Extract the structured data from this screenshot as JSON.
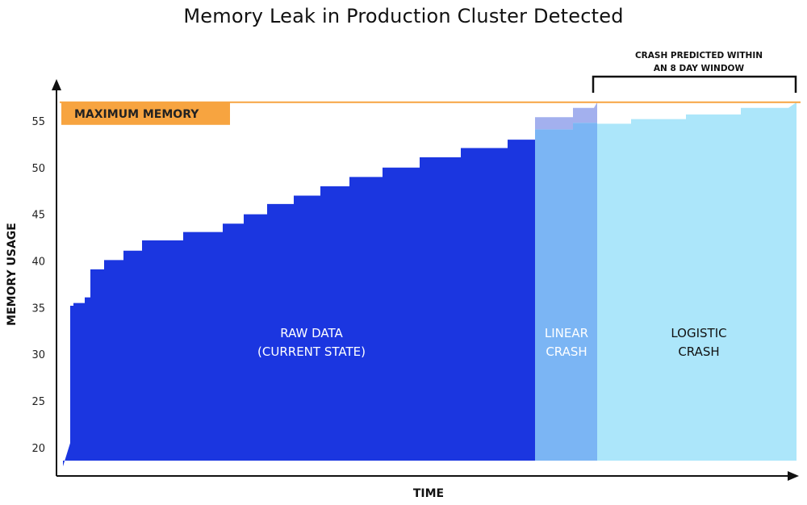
{
  "chart_data": {
    "type": "area",
    "title": "Memory Leak in Production Cluster Detected",
    "xlabel": "TIME",
    "ylabel": "MEMORY USAGE",
    "ylim": [
      18,
      57.5
    ],
    "yticks": [
      20,
      25,
      30,
      35,
      40,
      45,
      50,
      55
    ],
    "grid": false,
    "series": [
      {
        "name": "RAW DATA\n(CURRENT STATE)",
        "color": "#1b36e0",
        "values": [
          18,
          20.5,
          35.2,
          35.5,
          36.1,
          39.1,
          40.1,
          41.1,
          42.2,
          43.1,
          44.0,
          45.0,
          46.1,
          47.0,
          48.0,
          49.0,
          50.0,
          51.1,
          52.1,
          53.0,
          54.1
        ]
      },
      {
        "name": "LINEAR\nCRASH",
        "color": "#7bb5f4",
        "values": [
          54.1,
          54.8,
          57
        ]
      },
      {
        "name": "LOGISTIC\nCRASH",
        "color": "#ace6fa",
        "values": [
          54.7,
          55.2,
          55.7,
          56.4,
          57
        ]
      }
    ],
    "threshold": {
      "label": "MAXIMUM MEMORY",
      "value": 57,
      "color": "#f7a440"
    },
    "annotation": {
      "text_line1": "CRASH PREDICTED WITHIN",
      "text_line2": "AN 8 DAY WINDOW"
    }
  }
}
